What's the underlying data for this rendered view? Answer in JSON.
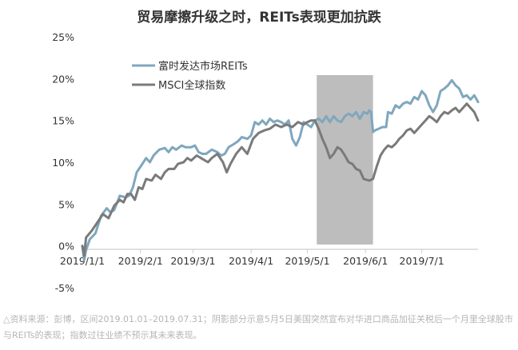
{
  "chart_data": {
    "type": "line",
    "title": "贸易摩擦升级之时，REITs表现更加抗跌",
    "xlabel": "",
    "ylabel": "",
    "ylim": [
      -0.05,
      0.25
    ],
    "xlim": [
      "2019-01-01",
      "2019-07-31"
    ],
    "y_ticks": [
      "25%",
      "20%",
      "15%",
      "10%",
      "5%",
      "0%",
      "-5%"
    ],
    "x_ticks": [
      {
        "date": "2019-01-01",
        "label": "2019/1/1"
      },
      {
        "date": "2019-02-01",
        "label": "2019/2/1"
      },
      {
        "date": "2019-03-01",
        "label": "2019/3/1"
      },
      {
        "date": "2019-04-01",
        "label": "2019/4/1"
      },
      {
        "date": "2019-05-01",
        "label": "2019/5/1"
      },
      {
        "date": "2019-06-01",
        "label": "2019/6/1"
      },
      {
        "date": "2019-07-01",
        "label": "2019/7/1"
      }
    ],
    "grid": false,
    "legend_position": "top-left",
    "shaded_region": {
      "start": "2019-05-06",
      "end": "2019-06-05",
      "color": "#bdbdbd"
    },
    "series": [
      {
        "name": "富时发达市场REITs",
        "color": "#7fa7bd",
        "points": [
          [
            "2019-01-01",
            0.0
          ],
          [
            "2019-01-02",
            -0.017
          ],
          [
            "2019-01-03",
            -0.005
          ],
          [
            "2019-01-05",
            0.008
          ],
          [
            "2019-01-08",
            0.015
          ],
          [
            "2019-01-11",
            0.036
          ],
          [
            "2019-01-14",
            0.045
          ],
          [
            "2019-01-16",
            0.04
          ],
          [
            "2019-01-18",
            0.043
          ],
          [
            "2019-01-21",
            0.06
          ],
          [
            "2019-01-24",
            0.058
          ],
          [
            "2019-01-26",
            0.06
          ],
          [
            "2019-01-28",
            0.07
          ],
          [
            "2019-01-30",
            0.088
          ],
          [
            "2019-02-02",
            0.098
          ],
          [
            "2019-02-04",
            0.105
          ],
          [
            "2019-02-06",
            0.1
          ],
          [
            "2019-02-08",
            0.108
          ],
          [
            "2019-02-11",
            0.115
          ],
          [
            "2019-02-14",
            0.117
          ],
          [
            "2019-02-16",
            0.112
          ],
          [
            "2019-02-18",
            0.118
          ],
          [
            "2019-02-20",
            0.115
          ],
          [
            "2019-02-23",
            0.12
          ],
          [
            "2019-02-25",
            0.118
          ],
          [
            "2019-02-28",
            0.118
          ],
          [
            "2019-03-02",
            0.12
          ],
          [
            "2019-03-04",
            0.112
          ],
          [
            "2019-03-06",
            0.11
          ],
          [
            "2019-03-08",
            0.11
          ],
          [
            "2019-03-11",
            0.115
          ],
          [
            "2019-03-14",
            0.112
          ],
          [
            "2019-03-16",
            0.108
          ],
          [
            "2019-03-18",
            0.11
          ],
          [
            "2019-03-20",
            0.118
          ],
          [
            "2019-03-23",
            0.122
          ],
          [
            "2019-03-25",
            0.125
          ],
          [
            "2019-03-27",
            0.13
          ],
          [
            "2019-03-30",
            0.128
          ],
          [
            "2019-04-01",
            0.132
          ],
          [
            "2019-04-03",
            0.148
          ],
          [
            "2019-04-05",
            0.145
          ],
          [
            "2019-04-07",
            0.15
          ],
          [
            "2019-04-09",
            0.145
          ],
          [
            "2019-04-11",
            0.152
          ],
          [
            "2019-04-13",
            0.148
          ],
          [
            "2019-04-15",
            0.15
          ],
          [
            "2019-04-17",
            0.148
          ],
          [
            "2019-04-19",
            0.145
          ],
          [
            "2019-04-21",
            0.15
          ],
          [
            "2019-04-23",
            0.128
          ],
          [
            "2019-04-25",
            0.12
          ],
          [
            "2019-04-27",
            0.13
          ],
          [
            "2019-04-29",
            0.148
          ],
          [
            "2019-05-01",
            0.145
          ],
          [
            "2019-05-03",
            0.142
          ],
          [
            "2019-05-05",
            0.15
          ],
          [
            "2019-05-07",
            0.152
          ],
          [
            "2019-05-09",
            0.148
          ],
          [
            "2019-05-11",
            0.155
          ],
          [
            "2019-05-13",
            0.148
          ],
          [
            "2019-05-15",
            0.155
          ],
          [
            "2019-05-17",
            0.15
          ],
          [
            "2019-05-19",
            0.148
          ],
          [
            "2019-05-21",
            0.155
          ],
          [
            "2019-05-23",
            0.158
          ],
          [
            "2019-05-25",
            0.155
          ],
          [
            "2019-05-27",
            0.16
          ],
          [
            "2019-05-29",
            0.152
          ],
          [
            "2019-05-31",
            0.16
          ],
          [
            "2019-06-02",
            0.158
          ],
          [
            "2019-06-03",
            0.162
          ],
          [
            "2019-06-04",
            0.16
          ],
          [
            "2019-06-05",
            0.136
          ],
          [
            "2019-06-06",
            0.138
          ],
          [
            "2019-06-08",
            0.14
          ],
          [
            "2019-06-10",
            0.142
          ],
          [
            "2019-06-12",
            0.142
          ],
          [
            "2019-06-13",
            0.16
          ],
          [
            "2019-06-15",
            0.158
          ],
          [
            "2019-06-17",
            0.168
          ],
          [
            "2019-06-19",
            0.165
          ],
          [
            "2019-06-21",
            0.17
          ],
          [
            "2019-06-23",
            0.172
          ],
          [
            "2019-06-25",
            0.17
          ],
          [
            "2019-06-27",
            0.178
          ],
          [
            "2019-06-29",
            0.175
          ],
          [
            "2019-07-01",
            0.185
          ],
          [
            "2019-07-03",
            0.18
          ],
          [
            "2019-07-05",
            0.168
          ],
          [
            "2019-07-07",
            0.16
          ],
          [
            "2019-07-09",
            0.168
          ],
          [
            "2019-07-11",
            0.185
          ],
          [
            "2019-07-13",
            0.188
          ],
          [
            "2019-07-15",
            0.192
          ],
          [
            "2019-07-17",
            0.198
          ],
          [
            "2019-07-19",
            0.192
          ],
          [
            "2019-07-21",
            0.188
          ],
          [
            "2019-07-23",
            0.178
          ],
          [
            "2019-07-25",
            0.18
          ],
          [
            "2019-07-27",
            0.175
          ],
          [
            "2019-07-29",
            0.18
          ],
          [
            "2019-07-31",
            0.172
          ]
        ]
      },
      {
        "name": "MSCI全球指数",
        "color": "#7a7a7a",
        "points": [
          [
            "2019-01-01",
            0.0
          ],
          [
            "2019-01-02",
            -0.012
          ],
          [
            "2019-01-03",
            0.01
          ],
          [
            "2019-01-06",
            0.018
          ],
          [
            "2019-01-09",
            0.028
          ],
          [
            "2019-01-12",
            0.038
          ],
          [
            "2019-01-15",
            0.033
          ],
          [
            "2019-01-18",
            0.048
          ],
          [
            "2019-01-21",
            0.055
          ],
          [
            "2019-01-23",
            0.052
          ],
          [
            "2019-01-25",
            0.062
          ],
          [
            "2019-01-27",
            0.062
          ],
          [
            "2019-01-29",
            0.055
          ],
          [
            "2019-01-31",
            0.07
          ],
          [
            "2019-02-02",
            0.068
          ],
          [
            "2019-02-04",
            0.08
          ],
          [
            "2019-02-07",
            0.078
          ],
          [
            "2019-02-09",
            0.085
          ],
          [
            "2019-02-12",
            0.08
          ],
          [
            "2019-02-14",
            0.088
          ],
          [
            "2019-02-16",
            0.092
          ],
          [
            "2019-02-19",
            0.092
          ],
          [
            "2019-02-21",
            0.098
          ],
          [
            "2019-02-24",
            0.1
          ],
          [
            "2019-02-26",
            0.105
          ],
          [
            "2019-02-28",
            0.102
          ],
          [
            "2019-03-03",
            0.108
          ],
          [
            "2019-03-06",
            0.104
          ],
          [
            "2019-03-09",
            0.1
          ],
          [
            "2019-03-11",
            0.105
          ],
          [
            "2019-03-14",
            0.11
          ],
          [
            "2019-03-17",
            0.1
          ],
          [
            "2019-03-19",
            0.088
          ],
          [
            "2019-03-21",
            0.098
          ],
          [
            "2019-03-24",
            0.11
          ],
          [
            "2019-03-27",
            0.118
          ],
          [
            "2019-03-30",
            0.11
          ],
          [
            "2019-04-02",
            0.128
          ],
          [
            "2019-04-05",
            0.135
          ],
          [
            "2019-04-08",
            0.138
          ],
          [
            "2019-04-11",
            0.14
          ],
          [
            "2019-04-14",
            0.145
          ],
          [
            "2019-04-17",
            0.142
          ],
          [
            "2019-04-20",
            0.145
          ],
          [
            "2019-04-23",
            0.142
          ],
          [
            "2019-04-26",
            0.148
          ],
          [
            "2019-04-29",
            0.145
          ],
          [
            "2019-05-01",
            0.148
          ],
          [
            "2019-05-03",
            0.15
          ],
          [
            "2019-05-05",
            0.15
          ],
          [
            "2019-05-07",
            0.14
          ],
          [
            "2019-05-09",
            0.128
          ],
          [
            "2019-05-11",
            0.118
          ],
          [
            "2019-05-13",
            0.105
          ],
          [
            "2019-05-15",
            0.11
          ],
          [
            "2019-05-17",
            0.118
          ],
          [
            "2019-05-19",
            0.115
          ],
          [
            "2019-05-21",
            0.108
          ],
          [
            "2019-05-23",
            0.1
          ],
          [
            "2019-05-25",
            0.098
          ],
          [
            "2019-05-27",
            0.092
          ],
          [
            "2019-05-29",
            0.09
          ],
          [
            "2019-05-31",
            0.08
          ],
          [
            "2019-06-03",
            0.078
          ],
          [
            "2019-06-05",
            0.08
          ],
          [
            "2019-06-07",
            0.095
          ],
          [
            "2019-06-09",
            0.108
          ],
          [
            "2019-06-11",
            0.115
          ],
          [
            "2019-06-13",
            0.12
          ],
          [
            "2019-06-15",
            0.118
          ],
          [
            "2019-06-17",
            0.122
          ],
          [
            "2019-06-19",
            0.128
          ],
          [
            "2019-06-21",
            0.132
          ],
          [
            "2019-06-23",
            0.138
          ],
          [
            "2019-06-25",
            0.14
          ],
          [
            "2019-06-27",
            0.135
          ],
          [
            "2019-06-29",
            0.14
          ],
          [
            "2019-07-01",
            0.145
          ],
          [
            "2019-07-03",
            0.15
          ],
          [
            "2019-07-05",
            0.155
          ],
          [
            "2019-07-07",
            0.152
          ],
          [
            "2019-07-09",
            0.148
          ],
          [
            "2019-07-11",
            0.155
          ],
          [
            "2019-07-13",
            0.16
          ],
          [
            "2019-07-15",
            0.158
          ],
          [
            "2019-07-17",
            0.162
          ],
          [
            "2019-07-19",
            0.165
          ],
          [
            "2019-07-21",
            0.16
          ],
          [
            "2019-07-23",
            0.165
          ],
          [
            "2019-07-25",
            0.17
          ],
          [
            "2019-07-27",
            0.165
          ],
          [
            "2019-07-29",
            0.16
          ],
          [
            "2019-07-31",
            0.15
          ]
        ]
      }
    ]
  },
  "footnote": "△资料来源：彭博，区间2019.01.01–2019.07.31；阴影部分示意5月5日美国突然宣布对华进口商品加征关税后一个月里全球股市与REITs的表现；指数过往业绩不预示其未来表现。"
}
